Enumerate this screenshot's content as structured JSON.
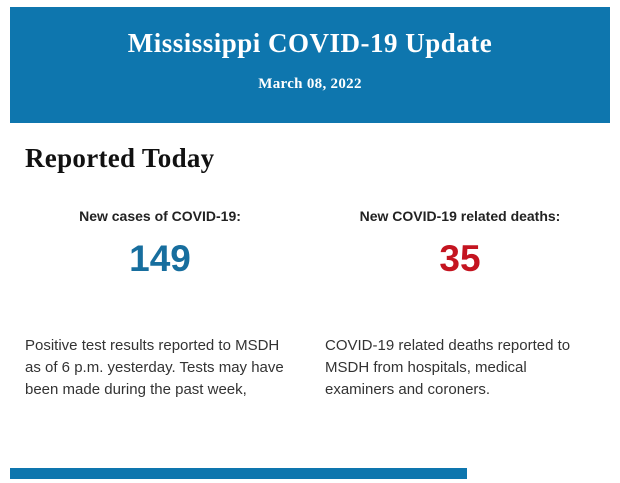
{
  "colors": {
    "header_bg": "#0e76ae",
    "cases_color": "#176e9e",
    "deaths_color": "#c41420",
    "heading": "#111111",
    "label": "#222222",
    "text": "#333333"
  },
  "header": {
    "title": "Mississippi COVID-19 Update",
    "date": "March 08, 2022"
  },
  "main": {
    "heading": "Reported Today",
    "stats": [
      {
        "label": "New cases of COVID-19:",
        "value": "149",
        "description": "Positive test results reported to MSDH as of 6 p.m. yesterday. Tests may have been made during the past week,"
      },
      {
        "label": "New COVID-19 related deaths:",
        "value": "35",
        "description": "COVID-19 related deaths reported to MSDH from hospitals, medical examiners and coroners."
      }
    ]
  }
}
